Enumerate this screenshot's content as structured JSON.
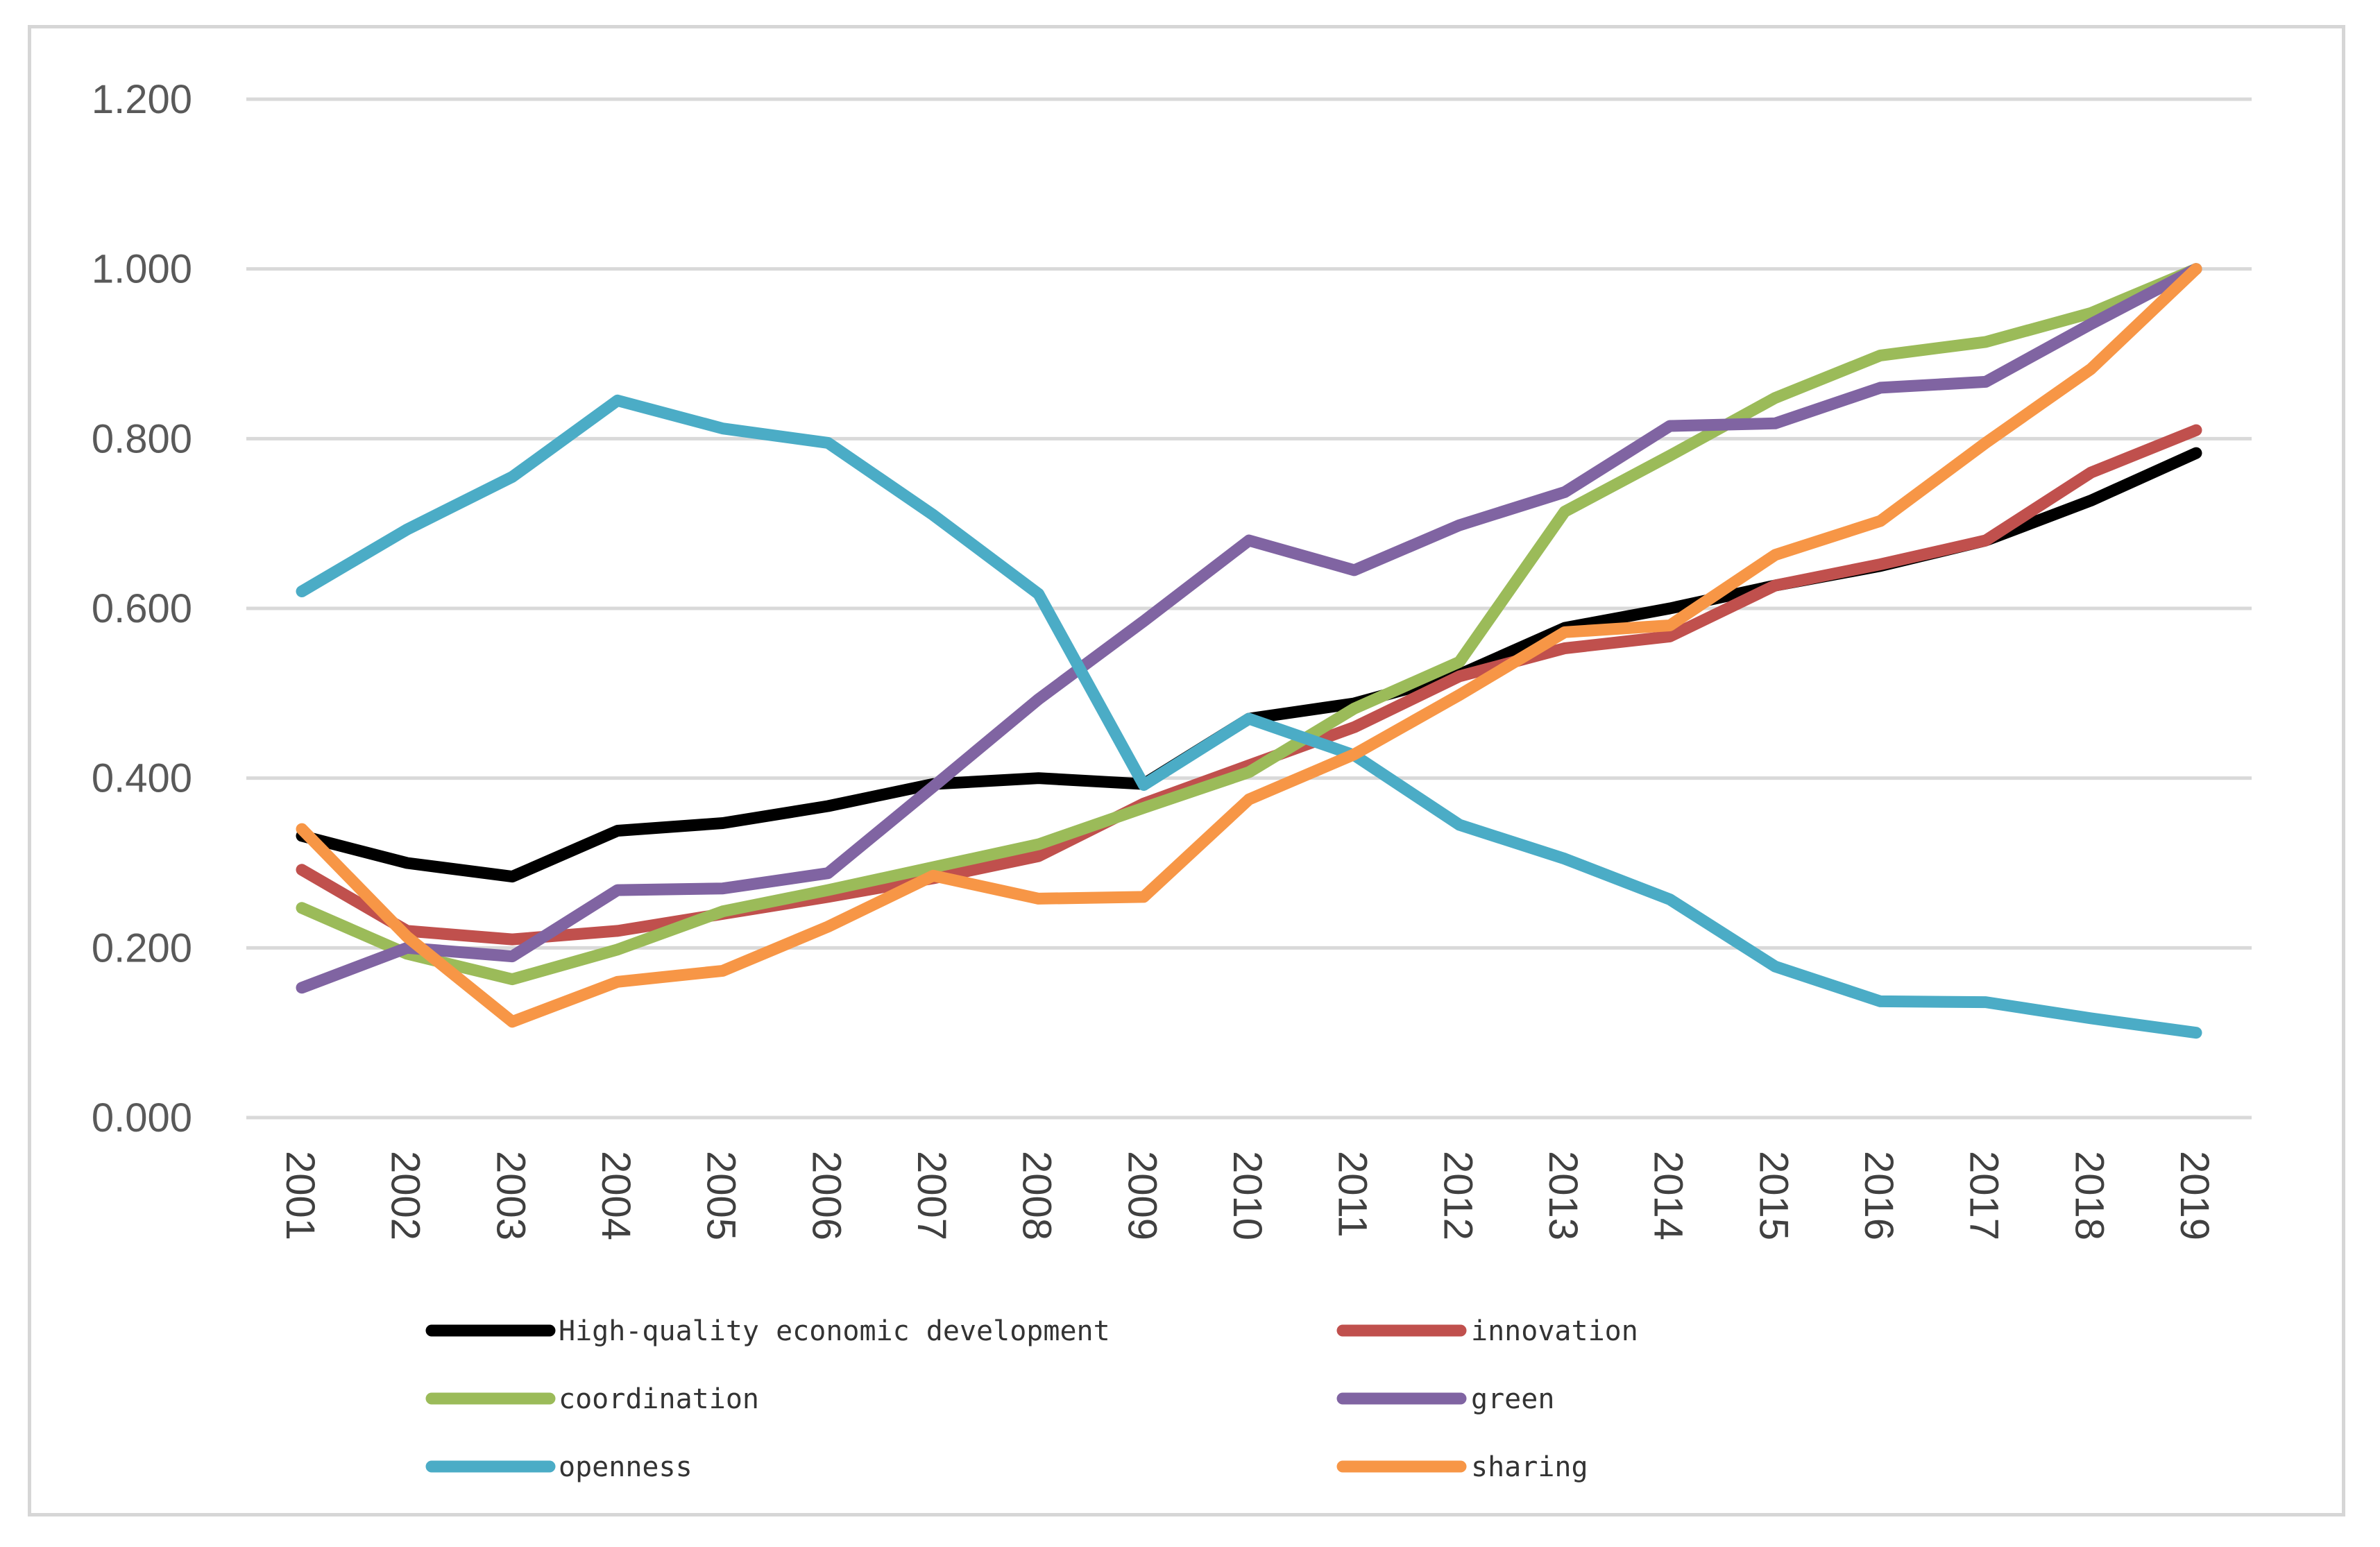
{
  "chart_data": {
    "type": "line",
    "title": "",
    "xlabel": "",
    "ylabel": "",
    "ylim": [
      0,
      1.2
    ],
    "yticks": [
      "0.000",
      "0.200",
      "0.400",
      "0.600",
      "0.800",
      "1.000",
      "1.200"
    ],
    "ytick_values": [
      0,
      0.2,
      0.4,
      0.6,
      0.8,
      1.0,
      1.2
    ],
    "grid": "horizontal",
    "legend_position": "bottom",
    "categories": [
      "2001",
      "2002",
      "2003",
      "2004",
      "2005",
      "2006",
      "2007",
      "2008",
      "2009",
      "2010",
      "2011",
      "2012",
      "2013",
      "2014",
      "2015",
      "2016",
      "2017",
      "2018",
      "2019"
    ],
    "series": [
      {
        "name": "High-quality economic development",
        "color": "#000000",
        "values": [
          0.332,
          0.3,
          0.284,
          0.338,
          0.347,
          0.367,
          0.393,
          0.4,
          0.393,
          0.47,
          0.488,
          0.522,
          0.577,
          0.6,
          0.627,
          0.65,
          0.68,
          0.727,
          0.783
        ]
      },
      {
        "name": "innovation",
        "color": "#C0504D",
        "values": [
          0.292,
          0.22,
          0.21,
          0.22,
          0.24,
          0.26,
          0.282,
          0.308,
          0.37,
          0.415,
          0.46,
          0.52,
          0.553,
          0.567,
          0.627,
          0.652,
          0.68,
          0.76,
          0.81
        ]
      },
      {
        "name": "coordination",
        "color": "#9BBB59",
        "values": [
          0.247,
          0.193,
          0.163,
          0.198,
          0.243,
          0.268,
          0.295,
          0.322,
          0.365,
          0.407,
          0.482,
          0.537,
          0.714,
          0.78,
          0.848,
          0.898,
          0.914,
          0.948,
          1.0
        ]
      },
      {
        "name": "green",
        "color": "#8064A2",
        "values": [
          0.153,
          0.2,
          0.19,
          0.268,
          0.27,
          0.288,
          0.39,
          0.493,
          0.585,
          0.68,
          0.645,
          0.698,
          0.737,
          0.815,
          0.818,
          0.86,
          0.867,
          0.935,
          1.0
        ]
      },
      {
        "name": "openness",
        "color": "#4BACC6",
        "values": [
          0.62,
          0.693,
          0.755,
          0.845,
          0.812,
          0.795,
          0.71,
          0.617,
          0.392,
          0.47,
          0.427,
          0.345,
          0.305,
          0.257,
          0.178,
          0.137,
          0.136,
          0.117,
          0.1
        ]
      },
      {
        "name": "sharing",
        "color": "#F79646",
        "values": [
          0.34,
          0.213,
          0.113,
          0.16,
          0.173,
          0.225,
          0.285,
          0.258,
          0.26,
          0.375,
          0.428,
          0.498,
          0.572,
          0.58,
          0.663,
          0.703,
          0.795,
          0.882,
          1.0
        ]
      }
    ]
  }
}
